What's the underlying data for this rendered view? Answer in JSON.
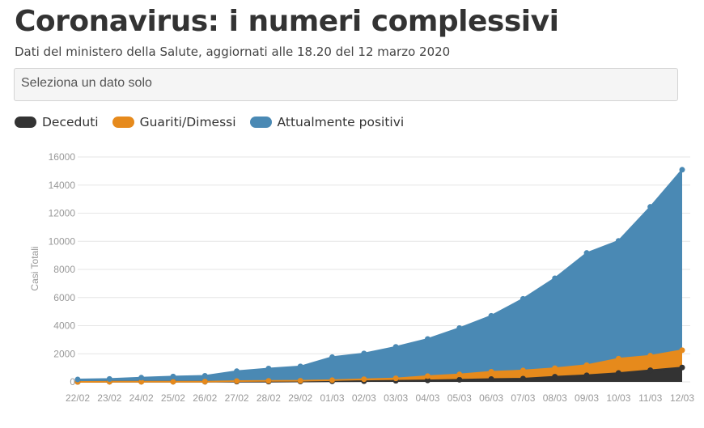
{
  "title": "Coronavirus: i numeri complessivi",
  "subtitle": "Dati del ministero della Salute, aggiornati alle 18.20 del 12 marzo 2020",
  "select": {
    "placeholder": "Seleziona un dato solo"
  },
  "colors": {
    "deceduti": "#333333",
    "guariti": "#e68a1c",
    "positivi": "#4a89b4",
    "grid": "#e6e6e6"
  },
  "chart_data": {
    "type": "area",
    "stacked": true,
    "x": [
      "22/02",
      "23/02",
      "24/02",
      "25/02",
      "26/02",
      "27/02",
      "28/02",
      "29/02",
      "01/03",
      "02/03",
      "03/03",
      "04/03",
      "05/03",
      "06/03",
      "07/03",
      "08/03",
      "09/03",
      "10/03",
      "11/03",
      "12/03"
    ],
    "ylabel": "Casi Totali",
    "ylim": [
      0,
      16000
    ],
    "yticks": [
      0,
      2000,
      4000,
      6000,
      8000,
      10000,
      12000,
      14000,
      16000
    ],
    "grid": true,
    "legend": "top-left",
    "series": [
      {
        "name": "Deceduti",
        "values": [
          0,
          10,
          10,
          10,
          10,
          20,
          20,
          30,
          40,
          50,
          80,
          110,
          150,
          200,
          230,
          370,
          470,
          630,
          830,
          1020
        ]
      },
      {
        "name": "Guariti/Dimessi",
        "values": [
          0,
          0,
          0,
          0,
          10,
          40,
          50,
          50,
          80,
          140,
          170,
          300,
          380,
          520,
          580,
          600,
          720,
          1020,
          1030,
          1230
        ]
      },
      {
        "name": "Attualmente positivi",
        "values": [
          170,
          200,
          290,
          370,
          410,
          700,
          880,
          1020,
          1640,
          1830,
          2240,
          2640,
          3300,
          3980,
          5100,
          6400,
          7980,
          8380,
          10590,
          12840
        ]
      }
    ]
  }
}
